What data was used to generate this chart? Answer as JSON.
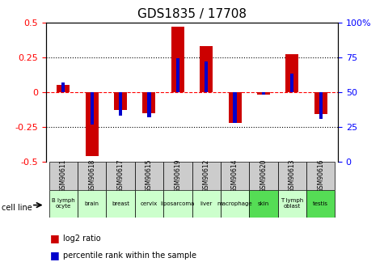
{
  "title": "GDS1835 / 17708",
  "gsm_labels": [
    "GSM90611",
    "GSM90618",
    "GSM90617",
    "GSM90615",
    "GSM90619",
    "GSM90612",
    "GSM90614",
    "GSM90620",
    "GSM90613",
    "GSM90616"
  ],
  "cell_labels": [
    "B lymph\nocyte",
    "brain",
    "breast",
    "cervix",
    "liposarcoma",
    "liver",
    "macrophage",
    "skin",
    "T lymph\noblast",
    "testis"
  ],
  "log2_ratio": [
    0.05,
    -0.46,
    -0.13,
    -0.15,
    0.47,
    0.33,
    -0.22,
    -0.02,
    0.27,
    -0.16
  ],
  "percentile_rank": [
    57,
    27,
    33,
    32,
    74,
    72,
    28,
    48,
    63,
    31
  ],
  "ylim_left": [
    -0.5,
    0.5
  ],
  "ylim_right": [
    0,
    100
  ],
  "yticks_left": [
    -0.5,
    -0.25,
    0,
    0.25,
    0.5
  ],
  "yticks_right": [
    0,
    25,
    50,
    75,
    100
  ],
  "ytick_right_labels": [
    "0",
    "25",
    "50",
    "75",
    "100%"
  ],
  "bar_color_red": "#cc0000",
  "bar_color_blue": "#0000cc",
  "gsm_bg_color": "#cccccc",
  "cell_bg_light": "#ccffcc",
  "cell_bg_strong": "#55dd55",
  "cell_colors": [
    "#ccffcc",
    "#ccffcc",
    "#ccffcc",
    "#ccffcc",
    "#ccffcc",
    "#ccffcc",
    "#ccffcc",
    "#55dd55",
    "#ccffcc",
    "#55dd55"
  ]
}
